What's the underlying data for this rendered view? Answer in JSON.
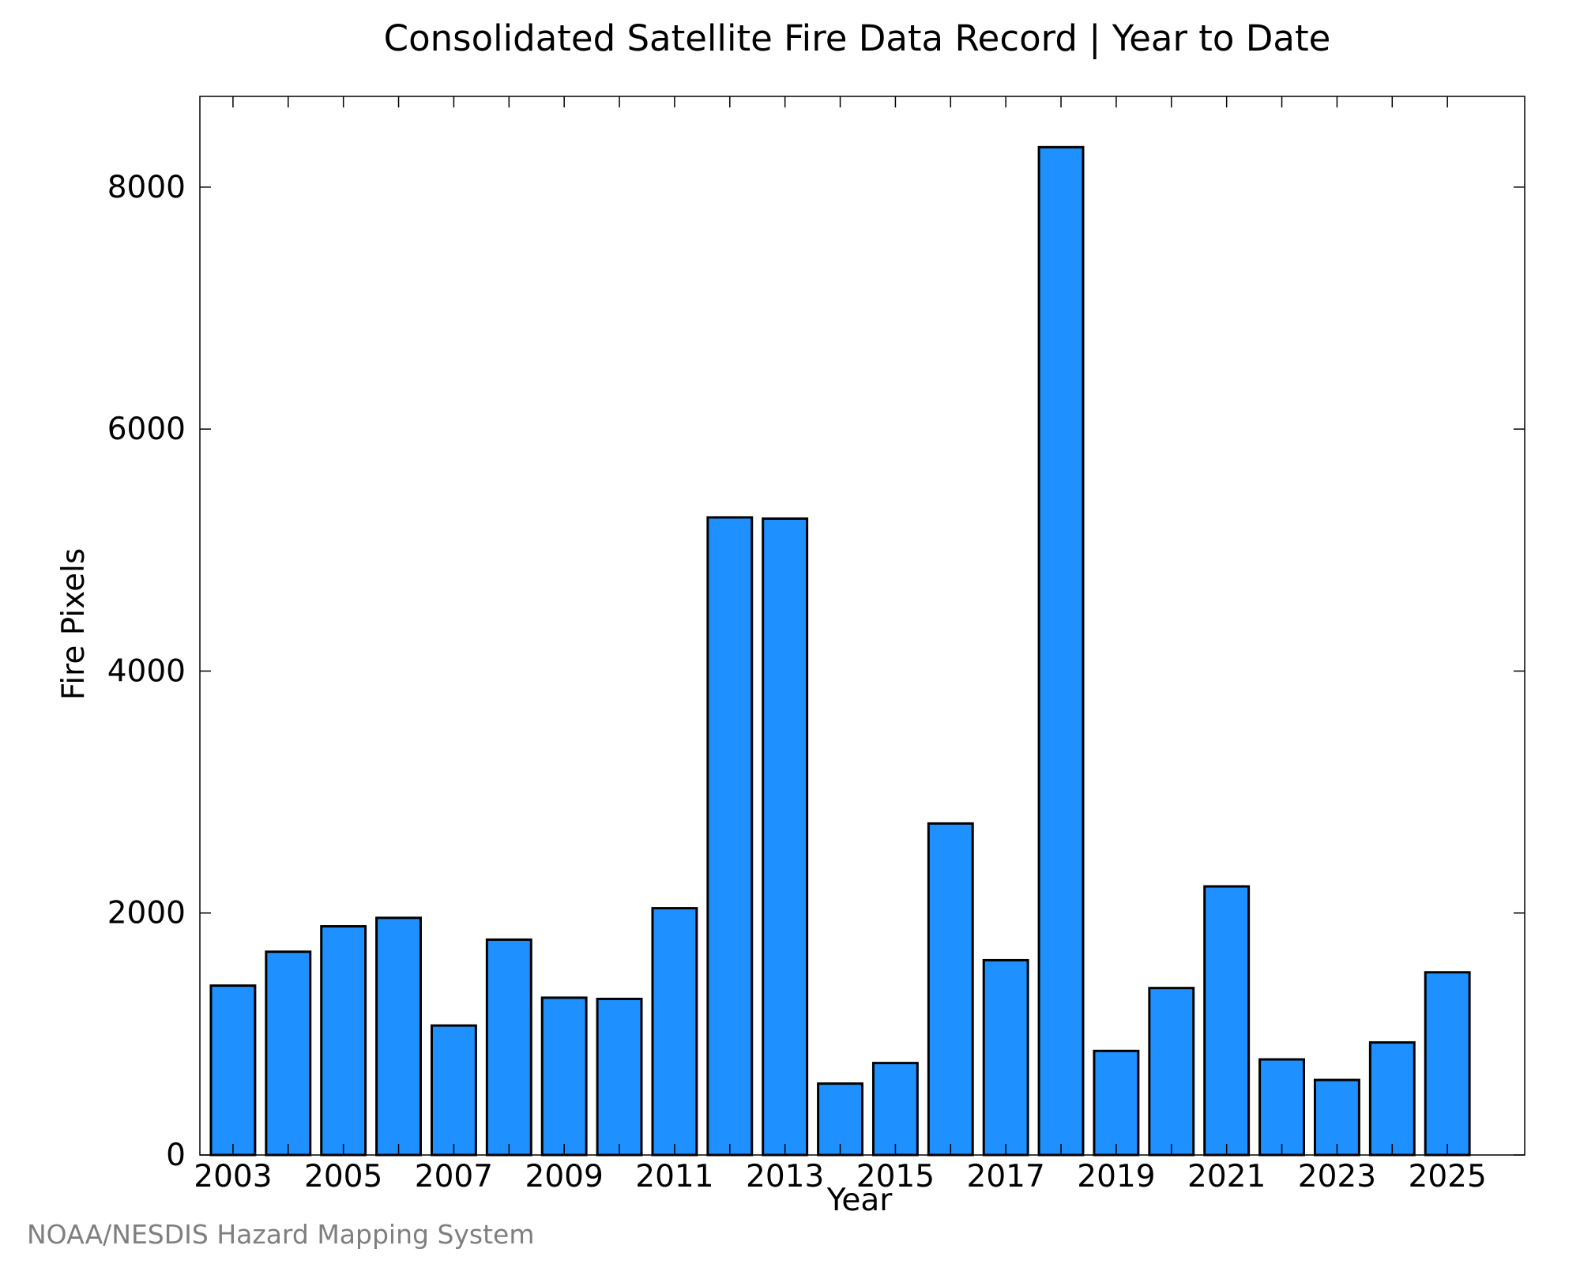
{
  "chart_data": {
    "type": "bar",
    "title": "Consolidated Satellite Fire Data Record | Year to Date",
    "xlabel": "Year",
    "ylabel": "Fire Pixels",
    "credit": "NOAA/NESDIS Hazard Mapping System",
    "bar_color": "#1e90ff",
    "bar_outline": "#000000",
    "grid": false,
    "xlim": [
      2002.4,
      2026.4
    ],
    "ylim": [
      0,
      8750
    ],
    "categories": [
      "2003",
      "2004",
      "2005",
      "2006",
      "2007",
      "2008",
      "2009",
      "2010",
      "2011",
      "2012",
      "2013",
      "2014",
      "2015",
      "2016",
      "2017",
      "2018",
      "2019",
      "2020",
      "2021",
      "2022",
      "2023",
      "2024",
      "2025"
    ],
    "values": [
      1400,
      1680,
      1890,
      1960,
      1070,
      1780,
      1300,
      1290,
      2040,
      5270,
      5260,
      590,
      760,
      2740,
      1610,
      8330,
      860,
      1380,
      2220,
      790,
      620,
      930,
      1510
    ],
    "x_ticks": [
      "2003",
      "2005",
      "2007",
      "2009",
      "2011",
      "2013",
      "2015",
      "2017",
      "2019",
      "2021",
      "2023",
      "2025"
    ],
    "y_ticks": [
      "0",
      "2000",
      "4000",
      "6000",
      "8000"
    ]
  }
}
